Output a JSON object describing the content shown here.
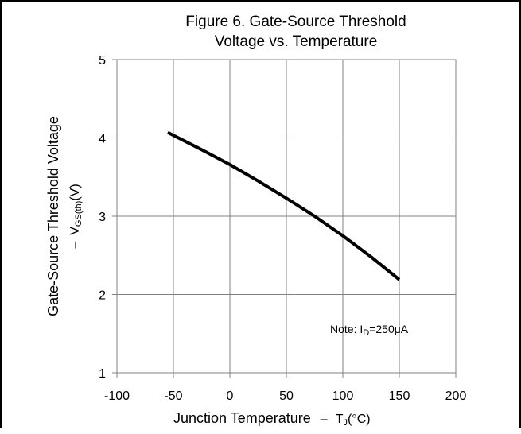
{
  "chart_data": {
    "type": "line",
    "title": [
      "Figure 6. Gate-Source Threshold",
      "Voltage vs. Temperature"
    ],
    "ylabel": {
      "main": "Gate-Source Threshold Voltage",
      "dash": "–",
      "symbol": "V",
      "symbol_sub": "GS(th)",
      "unit": "(V)"
    },
    "xlabel": {
      "main": "Junction Temperature",
      "dash": "–",
      "symbol": "T",
      "symbol_sub": "J",
      "unit": "(°C)"
    },
    "xlim": [
      -100,
      200
    ],
    "ylim": [
      1,
      5
    ],
    "xticks": [
      -100,
      -50,
      0,
      50,
      100,
      150,
      200
    ],
    "yticks": [
      1,
      2,
      3,
      4,
      5
    ],
    "grid": true,
    "note": {
      "prefix": "Note: I",
      "sub": "D",
      "suffix": "=250μA"
    },
    "series": [
      {
        "color": "#000000",
        "x": [
          -55,
          -25,
          0,
          25,
          50,
          75,
          100,
          125,
          150
        ],
        "y": [
          4.07,
          3.85,
          3.66,
          3.45,
          3.23,
          3.0,
          2.75,
          2.48,
          2.19
        ]
      }
    ]
  }
}
